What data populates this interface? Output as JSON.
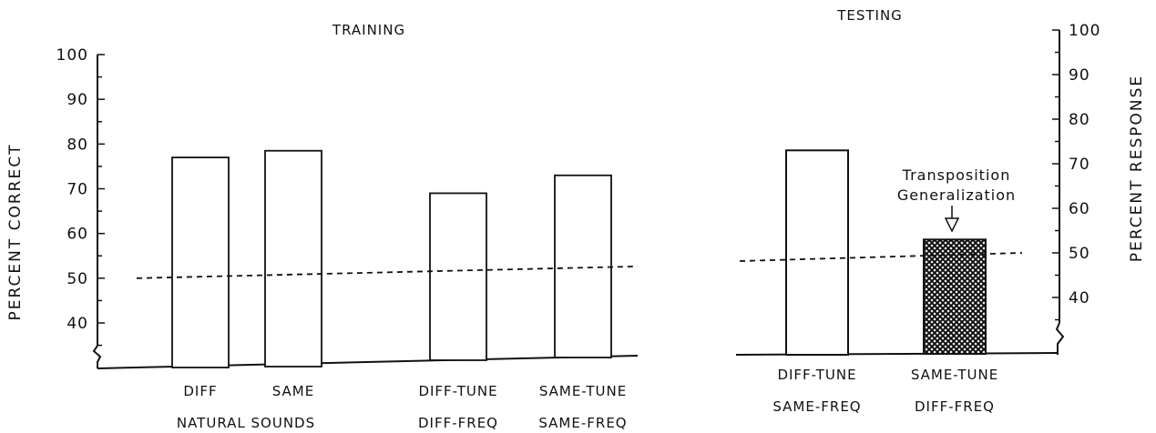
{
  "chart_data": [
    {
      "type": "bar",
      "title": "TRAINING",
      "ylabel": "PERCENT CORRECT",
      "ylim": [
        30,
        100
      ],
      "yticks": [
        "40",
        "50",
        "60",
        "70",
        "80",
        "90",
        "100"
      ],
      "bars": [
        {
          "value": 77,
          "color": "#ffffff",
          "label_lines": [
            "DIFF"
          ]
        },
        {
          "value": 78.5,
          "color": "#ffffff",
          "label_lines": [
            "SAME"
          ]
        },
        {
          "value": 69,
          "color": "#ffffff",
          "label_lines": [
            "DIFF-TUNE",
            "DIFF-FREQ"
          ]
        },
        {
          "value": 73,
          "color": "#ffffff",
          "label_lines": [
            "SAME-TUNE",
            "SAME-FREQ"
          ]
        }
      ],
      "group_label": "NATURAL SOUNDS",
      "chance_line": 50,
      "grid": false
    },
    {
      "type": "bar",
      "title": "TESTING",
      "ylabel": "PERCENT RESPONSE",
      "ylim": [
        30,
        100
      ],
      "yticks": [
        "40",
        "50",
        "60",
        "70",
        "80",
        "90",
        "100"
      ],
      "bars": [
        {
          "value": 73,
          "color": "#ffffff",
          "label_lines": [
            "DIFF-TUNE",
            "SAME-FREQ"
          ]
        },
        {
          "value": 53,
          "color": "#222222",
          "pattern": "crosshatch",
          "label_lines": [
            "SAME-TUNE",
            "DIFF-FREQ"
          ]
        }
      ],
      "annotation": [
        "Transposition",
        "Generalization"
      ],
      "chance_line": 50,
      "grid": false
    }
  ]
}
